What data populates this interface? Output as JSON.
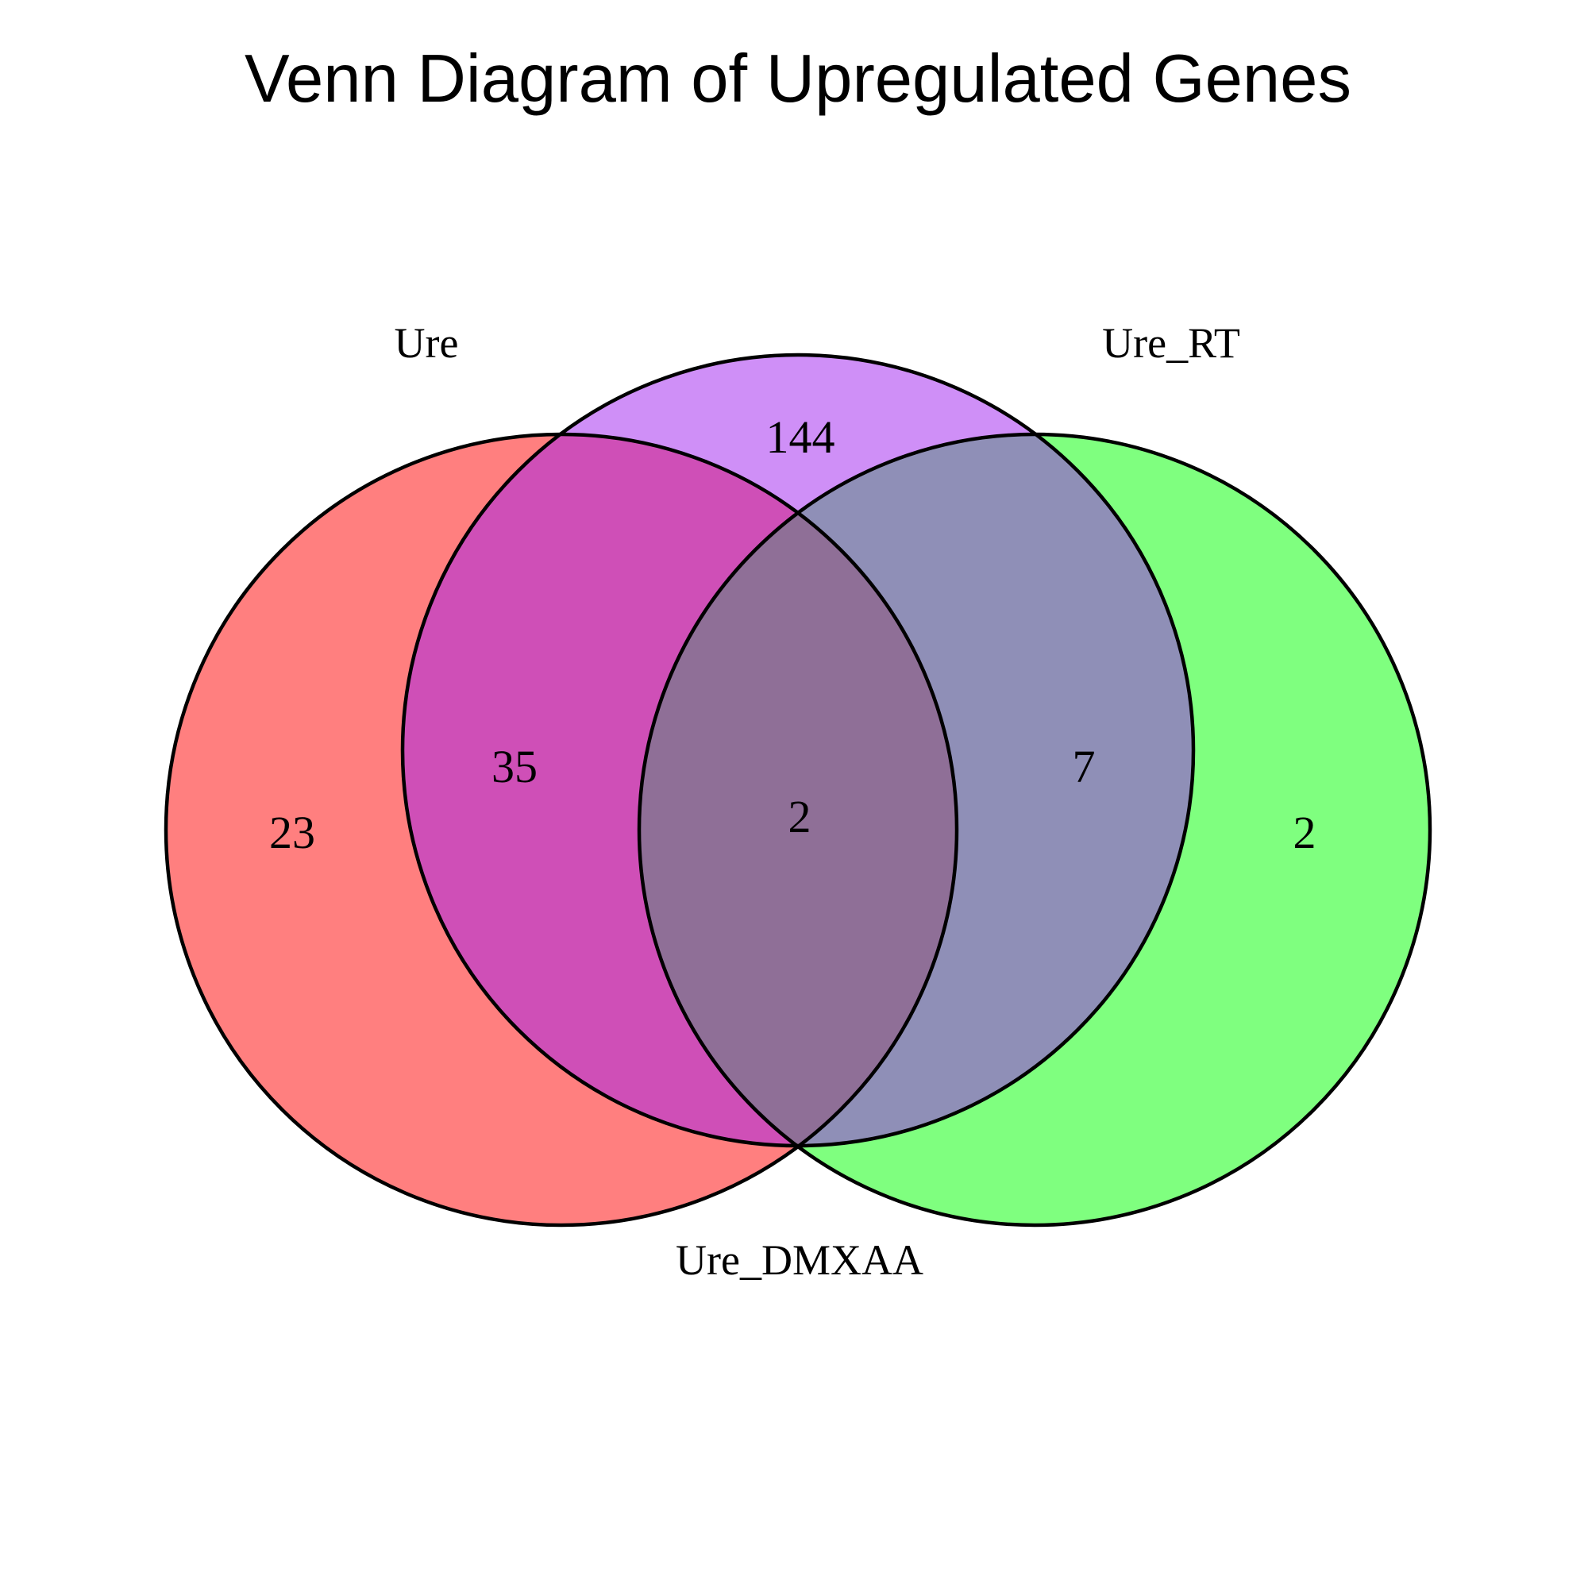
{
  "title": "Venn Diagram of Upregulated Genes",
  "sets": {
    "ure": {
      "label": "Ure",
      "color": "#ff0000"
    },
    "ure_dmxaa": {
      "label": "Ure_DMXAA",
      "color": "#a020f0"
    },
    "ure_rt": {
      "label": "Ure_RT",
      "color": "#00ff00"
    }
  },
  "fill_opacity": 0.5,
  "regions": {
    "ure_only": "23",
    "ure_dmxaa_only": "144",
    "ure_rt_only": "2",
    "ure_and_ure_dmxaa": "35",
    "ure_dmxaa_and_ure_rt": "7",
    "all_three": "2"
  }
}
